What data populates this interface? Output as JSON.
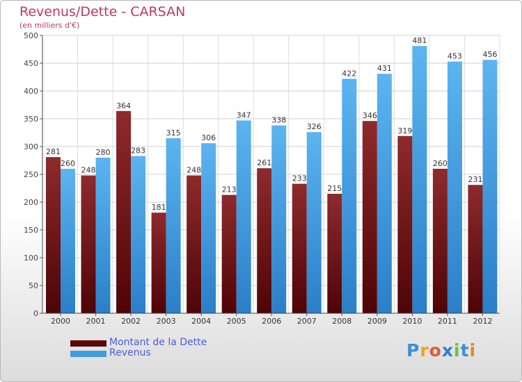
{
  "header": {
    "title": "Revenus/Dette - CARSAN",
    "subtitle": "(en milliers d'€)"
  },
  "chart_data": {
    "type": "bar",
    "title": "Revenus/Dette - CARSAN",
    "subtitle": "(en milliers d'€)",
    "categories": [
      "2000",
      "2001",
      "2002",
      "2003",
      "2004",
      "2005",
      "2006",
      "2007",
      "2008",
      "2009",
      "2010",
      "2011",
      "2012"
    ],
    "series": [
      {
        "name": "Montant de la Dette",
        "color": "#7a1416",
        "values": [
          281,
          248,
          364,
          181,
          248,
          213,
          261,
          233,
          215,
          346,
          319,
          260,
          231
        ]
      },
      {
        "name": "Revenus",
        "color": "#3f9de0",
        "values": [
          260,
          280,
          283,
          315,
          306,
          347,
          338,
          326,
          422,
          431,
          481,
          453,
          456
        ]
      }
    ],
    "ylim": [
      0,
      500
    ],
    "yticks": [
      0,
      50,
      100,
      150,
      200,
      250,
      300,
      350,
      400,
      450,
      500
    ],
    "grid": true,
    "legend_position": "bottom-left",
    "data_labels": true
  },
  "legend": {
    "items": [
      {
        "label": "Montant de la Dette",
        "color": "#5a0a0c"
      },
      {
        "label": "Revenus",
        "color": "#3f9de0"
      }
    ]
  },
  "logo": {
    "text": "Proxiti",
    "letters": [
      {
        "char": "P",
        "color": "#3a8fd6"
      },
      {
        "char": "r",
        "color": "#f0a020"
      },
      {
        "char": "o",
        "color": "#e05a30"
      },
      {
        "char": "x",
        "color": "#2a7fd0"
      },
      {
        "char": "i",
        "color": "#6cbf3a"
      },
      {
        "char": "t",
        "color": "#3a8fd6"
      },
      {
        "char": "i",
        "color": "#e08a20"
      }
    ]
  }
}
